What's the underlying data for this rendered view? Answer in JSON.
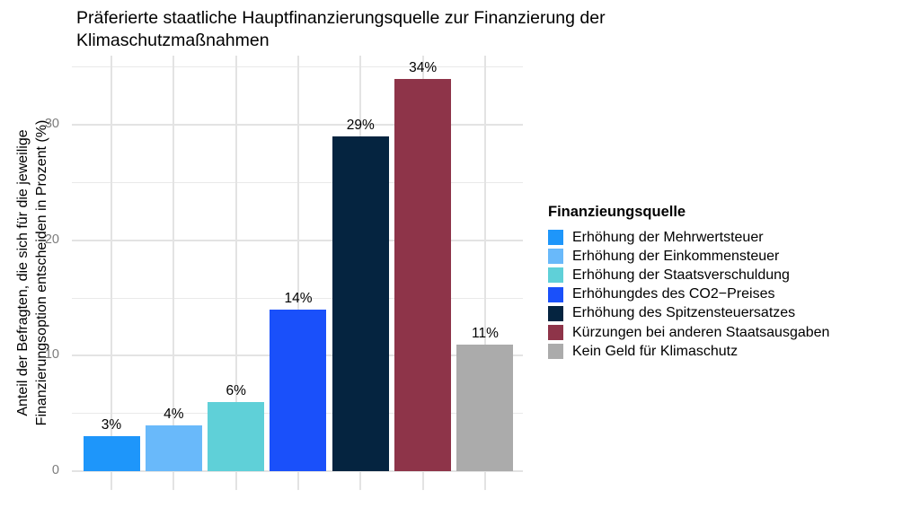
{
  "title": {
    "text": "Präferierte staatliche Hauptfinanzierungsquelle zur Finanzierung der\nKlimaschutzmaßnahmen"
  },
  "y_axis": {
    "label": "Anteil der Befragten, die sich für die jeweilige\nFinanzierungsoption entscheiden in Prozent (%)",
    "tick_labels": [
      "0",
      "10",
      "20",
      "30"
    ]
  },
  "legend": {
    "title": "Finanzieungsquelle",
    "items": [
      {
        "label": "Erhöhung der Mehrwertsteuer",
        "color": "#1E96FA"
      },
      {
        "label": "Erhöhung der Einkommensteuer",
        "color": "#69B9FA"
      },
      {
        "label": "Erhöhung der Staatsverschuldung",
        "color": "#5FD0D8"
      },
      {
        "label": "Erhöhungdes des CO2−Preises",
        "color": "#1A50FA"
      },
      {
        "label": "Erhöhung des Spitzensteuersatzes",
        "color": "#052440"
      },
      {
        "label": "Kürzungen bei anderen Staatsausgaben",
        "color": "#8E3449"
      },
      {
        "label": "Kein Geld für Klimaschutz",
        "color": "#ABABAB"
      }
    ]
  },
  "chart_data": {
    "type": "bar",
    "title": "Präferierte staatliche Hauptfinanzierungsquelle zur Finanzierung der Klimaschutzmaßnahmen",
    "categories": [
      "Erhöhung der Mehrwertsteuer",
      "Erhöhung der Einkommensteuer",
      "Erhöhung der Staatsverschuldung",
      "Erhöhungdes des CO2−Preises",
      "Erhöhung des Spitzensteuersatzes",
      "Kürzungen bei anderen Staatsausgaben",
      "Kein Geld für Klimaschutz"
    ],
    "values": [
      3,
      4,
      6,
      14,
      29,
      34,
      11
    ],
    "bar_labels": [
      "3%",
      "4%",
      "6%",
      "14%",
      "29%",
      "34%",
      "11%"
    ],
    "colors": [
      "#1E96FA",
      "#69B9FA",
      "#5FD0D8",
      "#1A50FA",
      "#052440",
      "#8E3449",
      "#ABABAB"
    ],
    "xlabel": "",
    "ylabel": "Anteil der Befragten, die sich für die jeweilige Finanzierungsoption entscheiden in Prozent (%)",
    "ylim": [
      0,
      36
    ],
    "yticks_major": [
      0,
      10,
      20,
      30
    ],
    "yticks_minor": [
      5,
      15,
      25,
      35
    ],
    "grid": "major and minor, light gray, horizontal and vertical",
    "legend_title": "Finanzieungsquelle",
    "legend_position": "right",
    "x_tick_labels_shown": false
  },
  "colors": {
    "grid_major": "#E3E3E3",
    "grid_minor": "#E9E9E9",
    "tick_label": "#7C7C7C",
    "text": "#000000",
    "background": "#FFFFFF"
  }
}
